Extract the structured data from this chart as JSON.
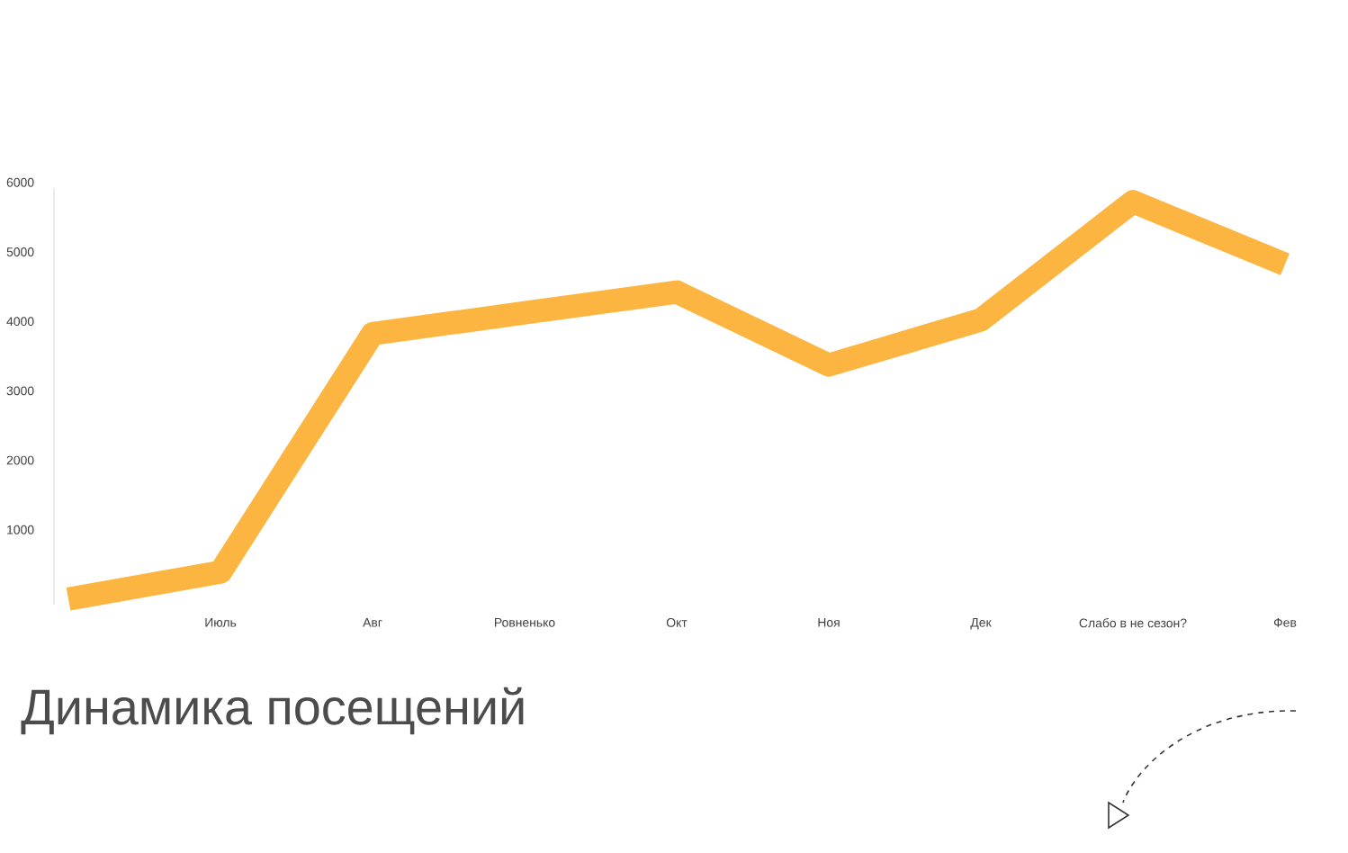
{
  "chart_data": {
    "type": "line",
    "title": "Динамика посещений",
    "categories": [
      null,
      "Июль",
      "Авг",
      "Ровненько",
      "Окт",
      "Ноя",
      "Дек",
      "Слабо в не сезон?",
      "Фев"
    ],
    "series": [
      {
        "color": "#fbb540",
        "values": [
          80,
          470,
          3900,
          4200,
          4500,
          3450,
          4100,
          5800,
          4900
        ]
      }
    ],
    "ylim": [
      0,
      6000
    ],
    "yticks": [
      1000,
      2000,
      3000,
      4000,
      5000,
      6000
    ],
    "marker": "none",
    "line_style": "solid"
  }
}
